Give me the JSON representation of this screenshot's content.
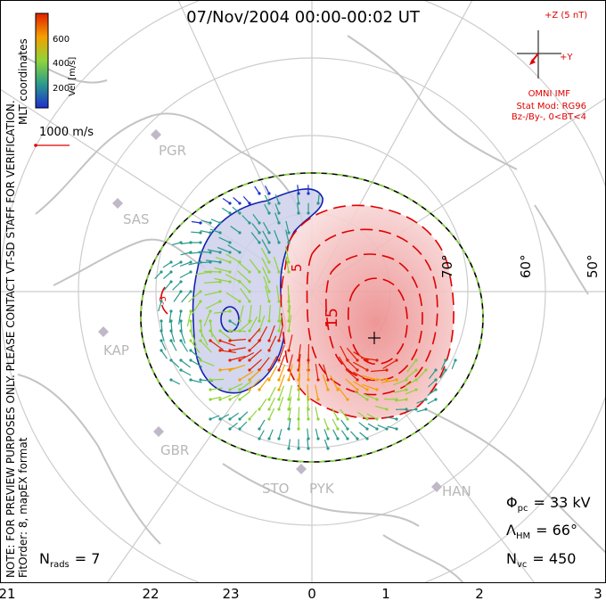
{
  "title": "07/Nov/2004 00:00-00:02 UT",
  "colorbar": {
    "label": "Vel [m/s]",
    "ticks": [
      "200",
      "400",
      "600"
    ],
    "colors": [
      "#1e2fd0",
      "#2a9a8c",
      "#8fd43a",
      "#f5a000",
      "#e02000"
    ]
  },
  "coordinates_label": "MLT coordinates",
  "scale_vector_label": "1000 m/s",
  "watermark": "NOTE: FOR PREVIEW PURPOSES ONLY. PLEASE CONTACT VT-SD STAFF FOR VERIFICATION.",
  "fit_info": "FitOrder: 8, mapEX format",
  "imf": {
    "z_label": "+Z (5 nT)",
    "y_label": "+Y",
    "source": "OMNI IMF",
    "stat_mod": "Stat Mod: RG96",
    "condition": "Bz-/By-, 0<BT<4"
  },
  "latitude_labels": [
    "70°",
    "60°",
    "50°"
  ],
  "contour_labels": [
    "-5",
    "5",
    "15"
  ],
  "mlt_ticks": [
    "21",
    "22",
    "23",
    "0",
    "1",
    "2",
    "3"
  ],
  "stations": [
    "PGR",
    "SAS",
    "KAP",
    "GBR",
    "STO",
    "PYK",
    "HAN"
  ],
  "stats": {
    "phi_pc": {
      "symbol": "Φ",
      "sub": "pc",
      "value": "= 33 kV"
    },
    "lambda_hm": {
      "symbol": "Λ",
      "sub": "HM",
      "value": "= 66°"
    },
    "n_vc": {
      "symbol": "N",
      "sub": "vc",
      "value": "= 450"
    },
    "n_rads": {
      "symbol": "N",
      "sub": "rads",
      "value": "= 7"
    }
  },
  "colors": {
    "positive_cell": "#f0b8b8",
    "negative_cell": "#c8cce8",
    "positive_contour": "#e00000",
    "negative_contour": "#1020b0",
    "map_lines": "#c8c8c8"
  }
}
